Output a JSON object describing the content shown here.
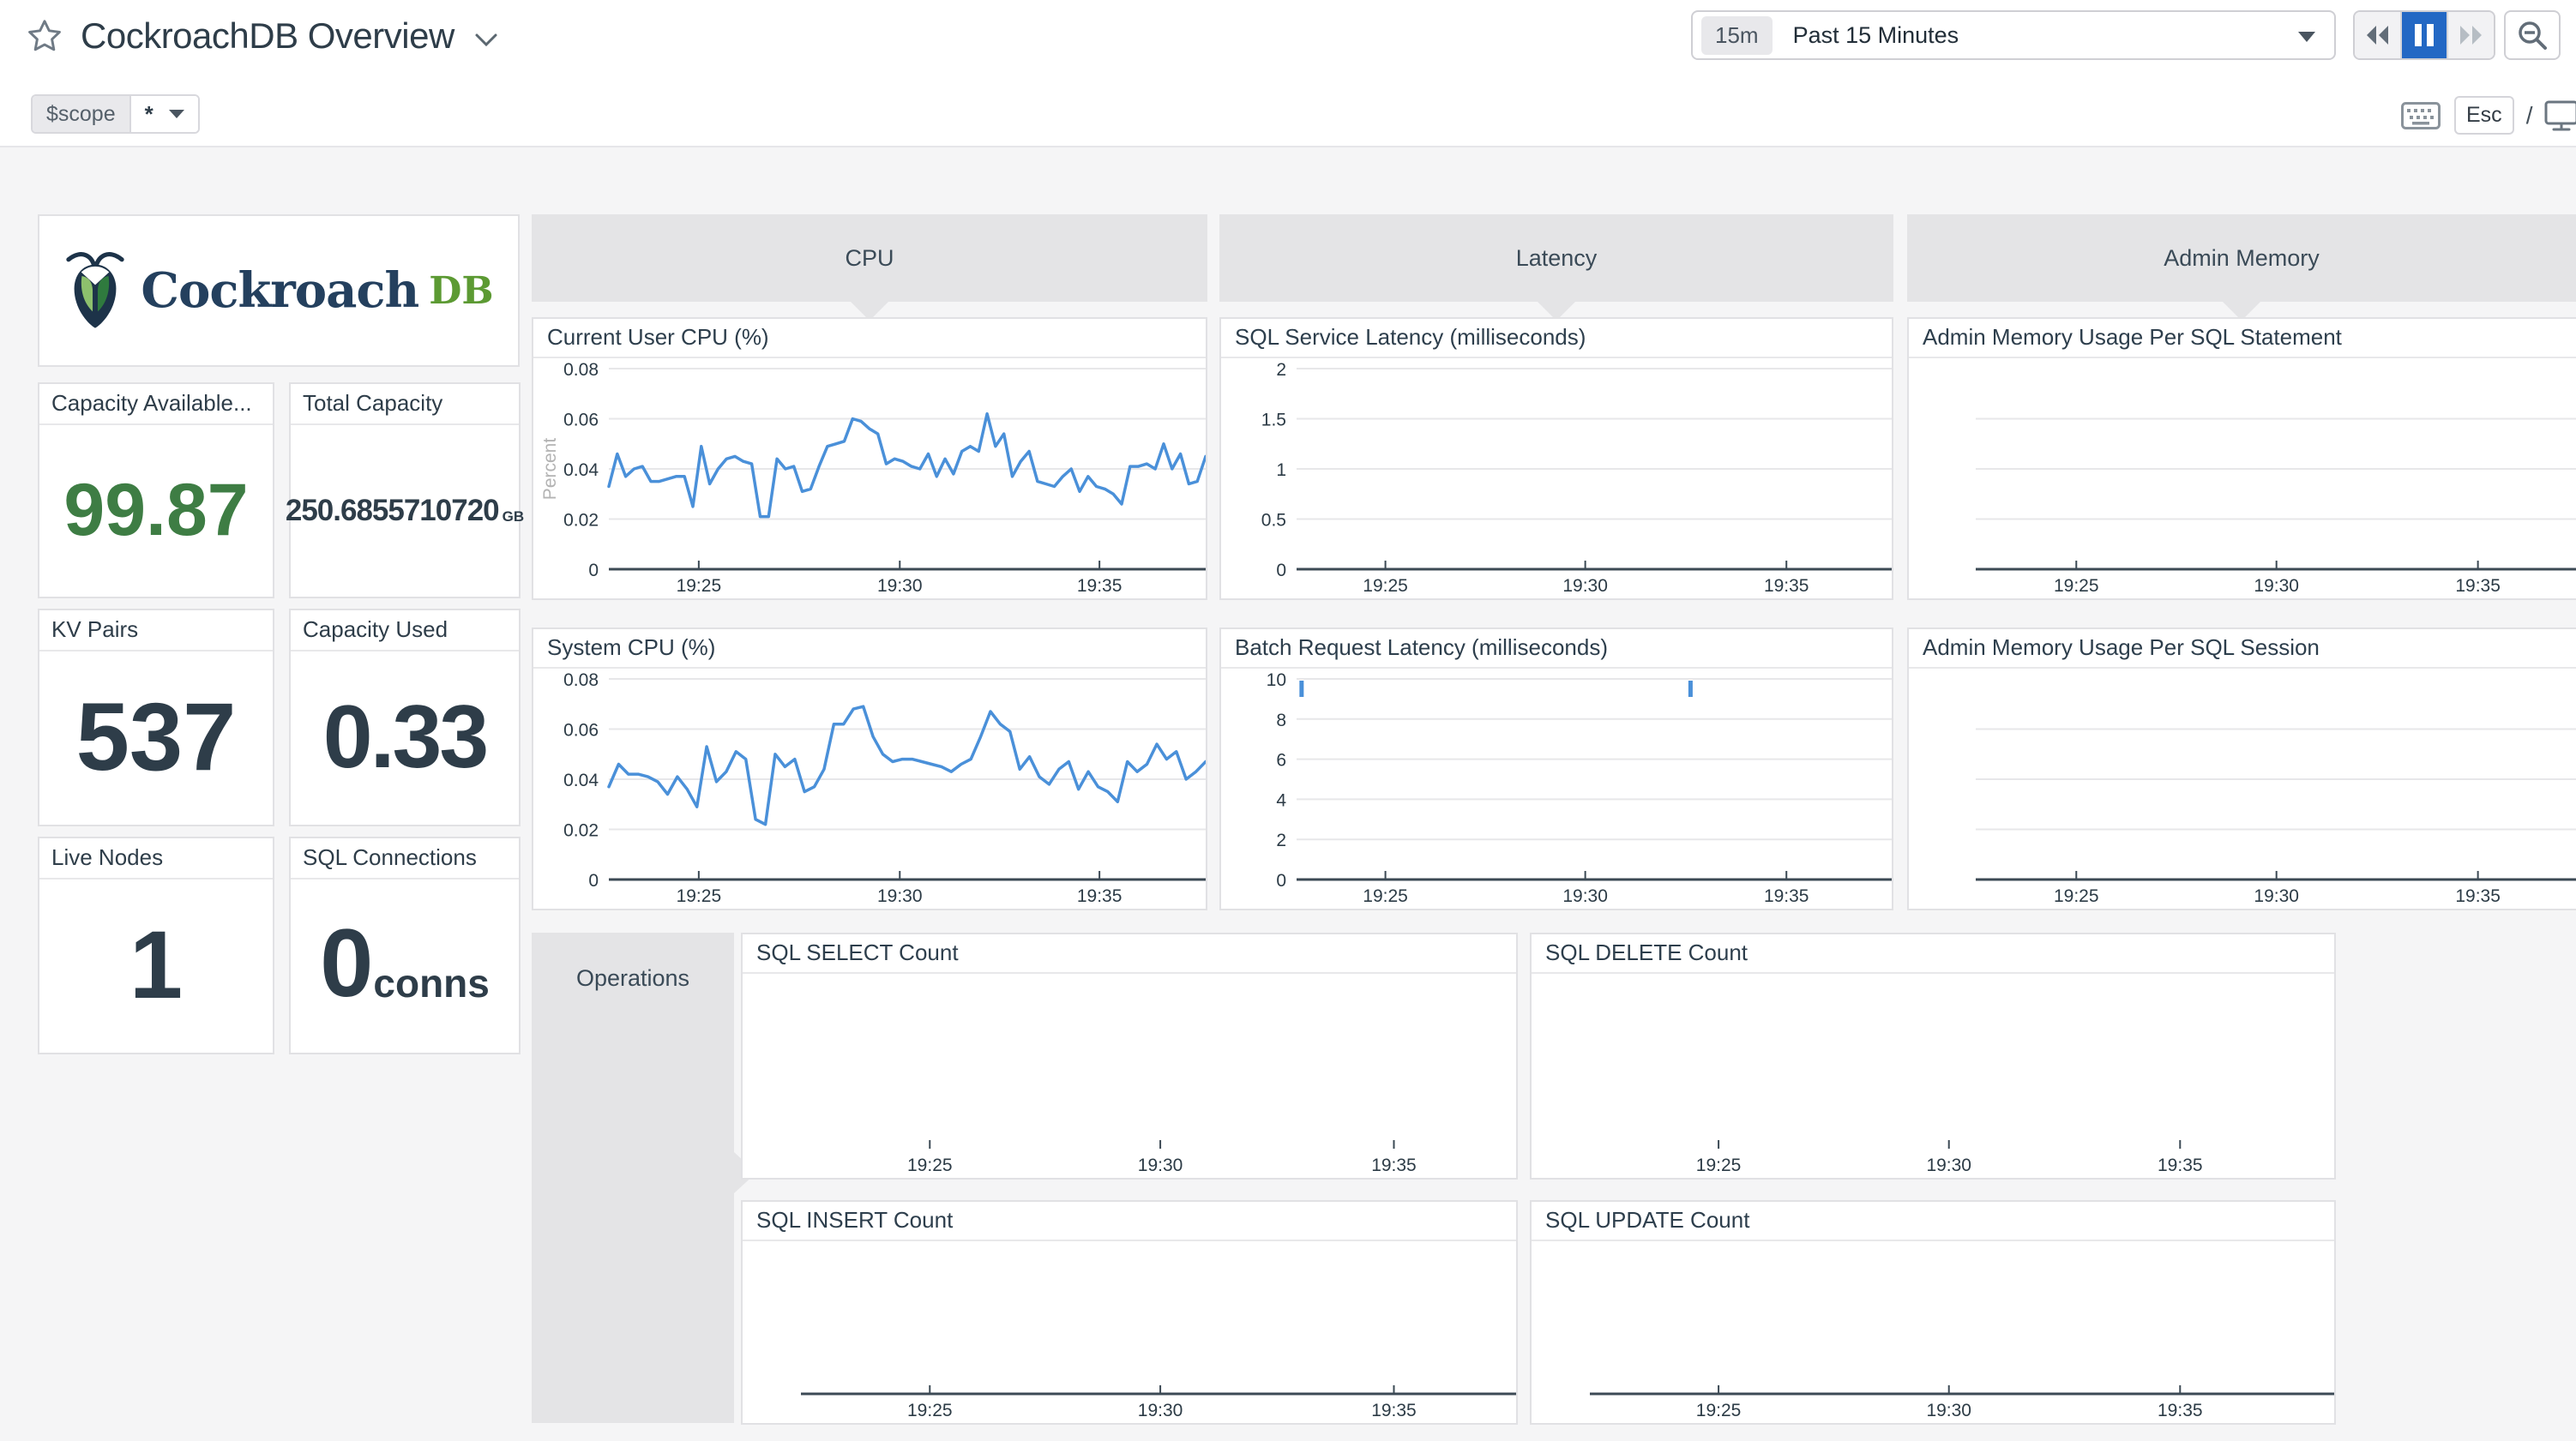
{
  "header": {
    "title": "CockroachDB Overview",
    "time_badge": "15m",
    "time_label": "Past 15 Minutes",
    "esc_label": "Esc",
    "slash": "/"
  },
  "scope_var": {
    "name": "$scope",
    "value": "*"
  },
  "logo": {
    "word": "Cockroach",
    "suffix": "DB"
  },
  "groups": {
    "cpu": "CPU",
    "latency": "Latency",
    "admin_memory": "Admin Memory",
    "operations": "Operations"
  },
  "stats": [
    {
      "title": "Capacity Available...",
      "value": "99.87",
      "unit": ""
    },
    {
      "title": "Total Capacity",
      "value": "250.6855710720",
      "unit": "GB"
    },
    {
      "title": "KV Pairs",
      "value": "537",
      "unit": ""
    },
    {
      "title": "Capacity Used",
      "value": "0.33",
      "unit": ""
    },
    {
      "title": "Live Nodes",
      "value": "1",
      "unit": ""
    },
    {
      "title": "SQL Connections",
      "value": "0",
      "unit": "conns"
    }
  ],
  "colors": {
    "line_blue": "#4a90d9",
    "grid": "#e7e7e9",
    "axis": "#3c4a55",
    "tick_text": "#2c3b46",
    "ylabel_text": "#b3b3b3",
    "accent_green": "#3e7d44",
    "active_blue": "#2368c4"
  },
  "chart_data": [
    {
      "title": "Current User CPU (%)",
      "type": "line",
      "ylabel": "Percent",
      "ylim": [
        0,
        0.08
      ],
      "y_ticks": [
        "0.08",
        "0.06",
        "0.04",
        "0.02",
        "0"
      ],
      "x_ticks": [
        {
          "label": "19:25",
          "f": 0.246
        },
        {
          "label": "19:30",
          "f": 0.545
        },
        {
          "label": "19:35",
          "f": 0.842
        }
      ],
      "indent": 88,
      "axis_line": true,
      "values": [
        0.033,
        0.046,
        0.037,
        0.04,
        0.041,
        0.035,
        0.035,
        0.036,
        0.037,
        0.037,
        0.025,
        0.049,
        0.034,
        0.04,
        0.044,
        0.045,
        0.043,
        0.042,
        0.021,
        0.021,
        0.044,
        0.04,
        0.041,
        0.031,
        0.032,
        0.041,
        0.049,
        0.05,
        0.051,
        0.06,
        0.059,
        0.056,
        0.054,
        0.042,
        0.044,
        0.043,
        0.041,
        0.04,
        0.046,
        0.037,
        0.044,
        0.038,
        0.047,
        0.049,
        0.047,
        0.062,
        0.049,
        0.054,
        0.037,
        0.043,
        0.047,
        0.035,
        0.034,
        0.033,
        0.037,
        0.04,
        0.031,
        0.037,
        0.033,
        0.032,
        0.03,
        0.026,
        0.041,
        0.041,
        0.042,
        0.04,
        0.05,
        0.04,
        0.046,
        0.034,
        0.035,
        0.045
      ]
    },
    {
      "title": "System CPU (%)",
      "type": "line",
      "ylim": [
        0,
        0.08
      ],
      "y_ticks": [
        "0.08",
        "0.06",
        "0.04",
        "0.02",
        "0"
      ],
      "x_ticks": [
        {
          "label": "19:25",
          "f": 0.246
        },
        {
          "label": "19:30",
          "f": 0.545
        },
        {
          "label": "19:35",
          "f": 0.842
        }
      ],
      "indent": 88,
      "axis_line": true,
      "values": [
        0.037,
        0.046,
        0.042,
        0.042,
        0.041,
        0.039,
        0.034,
        0.041,
        0.036,
        0.029,
        0.053,
        0.039,
        0.043,
        0.051,
        0.048,
        0.024,
        0.022,
        0.05,
        0.045,
        0.048,
        0.035,
        0.037,
        0.044,
        0.062,
        0.062,
        0.068,
        0.069,
        0.057,
        0.05,
        0.047,
        0.048,
        0.048,
        0.047,
        0.046,
        0.045,
        0.043,
        0.046,
        0.048,
        0.057,
        0.067,
        0.062,
        0.059,
        0.044,
        0.049,
        0.041,
        0.038,
        0.044,
        0.047,
        0.036,
        0.043,
        0.037,
        0.035,
        0.031,
        0.047,
        0.043,
        0.046,
        0.054,
        0.048,
        0.051,
        0.04,
        0.043,
        0.047
      ]
    },
    {
      "title": "SQL Service Latency (milliseconds)",
      "type": "line",
      "ylim": [
        0,
        2
      ],
      "y_ticks": [
        "2",
        "1.5",
        "1",
        "0.5",
        "0"
      ],
      "x_ticks": [
        {
          "label": "19:25",
          "f": 0.245
        },
        {
          "label": "19:30",
          "f": 0.543
        },
        {
          "label": "19:35",
          "f": 0.843
        }
      ],
      "indent": 88,
      "axis_line": true,
      "values": []
    },
    {
      "title": "Batch Request Latency (milliseconds)",
      "type": "line",
      "ylim": [
        0,
        10
      ],
      "y_ticks": [
        "10",
        "8",
        "6",
        "4",
        "2",
        "0"
      ],
      "x_ticks": [
        {
          "label": "19:25",
          "f": 0.245
        },
        {
          "label": "19:30",
          "f": 0.543
        },
        {
          "label": "19:35",
          "f": 0.843
        }
      ],
      "indent": 88,
      "axis_line": true,
      "values": [],
      "spikes": [
        {
          "f": 0.12,
          "v": 9.8
        },
        {
          "f": 0.7,
          "v": 9.8
        }
      ]
    },
    {
      "title": "Admin Memory Usage Per SQL Statement",
      "type": "line",
      "grid_count": 3,
      "x_ticks": [
        {
          "label": "19:25",
          "f": 0.251
        },
        {
          "label": "19:30",
          "f": 0.551
        },
        {
          "label": "19:35",
          "f": 0.853
        }
      ],
      "indent": 78,
      "axis_line": true,
      "values": []
    },
    {
      "title": "Admin Memory Usage Per SQL Session",
      "type": "line",
      "grid_count": 3,
      "x_ticks": [
        {
          "label": "19:25",
          "f": 0.251
        },
        {
          "label": "19:30",
          "f": 0.551
        },
        {
          "label": "19:35",
          "f": 0.853
        }
      ],
      "indent": 78,
      "axis_line": true,
      "values": []
    },
    {
      "title": "SQL SELECT Count",
      "type": "line",
      "x_ticks": [
        {
          "label": "19:25",
          "f": 0.242
        },
        {
          "label": "19:30",
          "f": 0.54
        },
        {
          "label": "19:35",
          "f": 0.842
        }
      ],
      "indent": 68,
      "axis_line": false,
      "values": []
    },
    {
      "title": "SQL DELETE Count",
      "type": "line",
      "x_ticks": [
        {
          "label": "19:25",
          "f": 0.233
        },
        {
          "label": "19:30",
          "f": 0.52
        },
        {
          "label": "19:35",
          "f": 0.808
        }
      ],
      "indent": 68,
      "axis_line": false,
      "values": []
    },
    {
      "title": "SQL INSERT Count",
      "type": "line",
      "x_ticks": [
        {
          "label": "19:25",
          "f": 0.242
        },
        {
          "label": "19:30",
          "f": 0.54
        },
        {
          "label": "19:35",
          "f": 0.842
        }
      ],
      "indent": 68,
      "axis_line": true,
      "values": []
    },
    {
      "title": "SQL UPDATE Count",
      "type": "line",
      "x_ticks": [
        {
          "label": "19:25",
          "f": 0.233
        },
        {
          "label": "19:30",
          "f": 0.52
        },
        {
          "label": "19:35",
          "f": 0.808
        }
      ],
      "indent": 68,
      "axis_line": true,
      "values": []
    }
  ]
}
